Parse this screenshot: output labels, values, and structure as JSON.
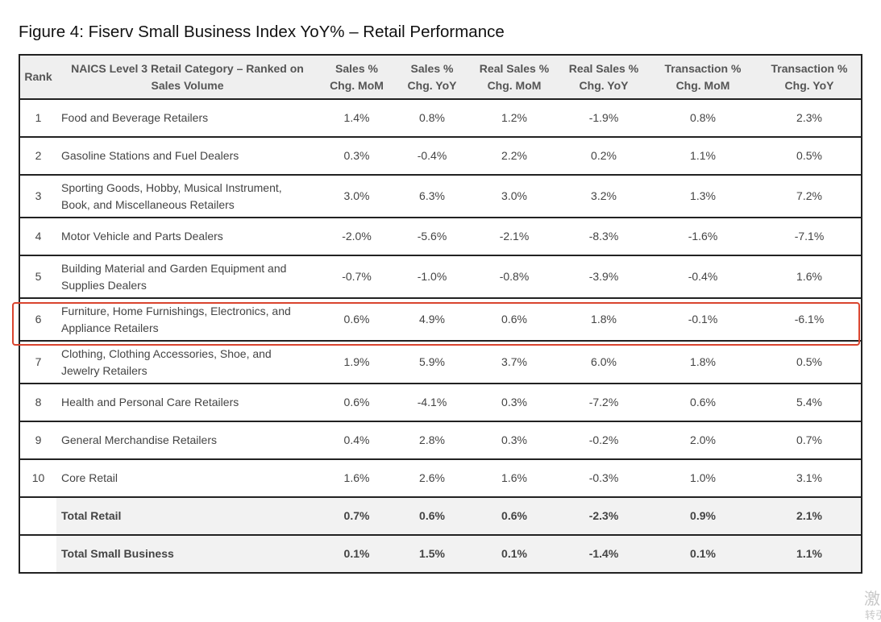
{
  "title": "Figure 4: Fiserv Small Business Index YoY% – Retail Performance",
  "columns": [
    {
      "line1": "Rank",
      "line2": ""
    },
    {
      "line1": "NAICS Level 3 Retail Category – Ranked on",
      "line2": "Sales Volume"
    },
    {
      "line1": "Sales %",
      "line2": "Chg. MoM"
    },
    {
      "line1": "Sales %",
      "line2": "Chg. YoY"
    },
    {
      "line1": "Real Sales %",
      "line2": "Chg. MoM"
    },
    {
      "line1": "Real Sales %",
      "line2": "Chg. YoY"
    },
    {
      "line1": "Transaction %",
      "line2": "Chg. MoM"
    },
    {
      "line1": "Transaction %",
      "line2": "Chg. YoY"
    }
  ],
  "rows": [
    {
      "rank": "1",
      "l1": "Food and Beverage Retailers",
      "l2": "",
      "v": [
        "1.4%",
        "0.8%",
        "1.2%",
        "-1.9%",
        "0.8%",
        "2.3%"
      ]
    },
    {
      "rank": "2",
      "l1": "Gasoline Stations and Fuel Dealers",
      "l2": "",
      "v": [
        "0.3%",
        "-0.4%",
        "2.2%",
        "0.2%",
        "1.1%",
        "0.5%"
      ]
    },
    {
      "rank": "3",
      "l1": "Sporting Goods, Hobby, Musical Instrument,",
      "l2": "Book, and Miscellaneous Retailers",
      "v": [
        "3.0%",
        "6.3%",
        "3.0%",
        "3.2%",
        "1.3%",
        "7.2%"
      ]
    },
    {
      "rank": "4",
      "l1": "Motor Vehicle and Parts Dealers",
      "l2": "",
      "v": [
        "-2.0%",
        "-5.6%",
        "-2.1%",
        "-8.3%",
        "-1.6%",
        "-7.1%"
      ]
    },
    {
      "rank": "5",
      "l1": "Building Material and Garden Equipment and",
      "l2": "Supplies Dealers",
      "v": [
        "-0.7%",
        "-1.0%",
        "-0.8%",
        "-3.9%",
        "-0.4%",
        "1.6%"
      ]
    },
    {
      "rank": "6",
      "l1": "Furniture, Home Furnishings, Electronics, and",
      "l2": "Appliance Retailers",
      "v": [
        "0.6%",
        "4.9%",
        "0.6%",
        "1.8%",
        "-0.1%",
        "-6.1%"
      ]
    },
    {
      "rank": "7",
      "l1": "Clothing, Clothing Accessories, Shoe, and",
      "l2": "Jewelry Retailers",
      "v": [
        "1.9%",
        "5.9%",
        "3.7%",
        "6.0%",
        "1.8%",
        "0.5%"
      ]
    },
    {
      "rank": "8",
      "l1": "Health and Personal Care Retailers",
      "l2": "",
      "v": [
        "0.6%",
        "-4.1%",
        "0.3%",
        "-7.2%",
        "0.6%",
        "5.4%"
      ]
    },
    {
      "rank": "9",
      "l1": "General Merchandise Retailers",
      "l2": "",
      "v": [
        "0.4%",
        "2.8%",
        "0.3%",
        "-0.2%",
        "2.0%",
        "0.7%"
      ]
    },
    {
      "rank": "10",
      "l1": "Core Retail",
      "l2": "",
      "v": [
        "1.6%",
        "2.6%",
        "1.6%",
        "-0.3%",
        "1.0%",
        "3.1%"
      ]
    },
    {
      "rank": "",
      "l1": "Total Retail",
      "l2": "",
      "v": [
        "0.7%",
        "0.6%",
        "0.6%",
        "-2.3%",
        "0.9%",
        "2.1%"
      ]
    },
    {
      "rank": "",
      "l1": "Total Small Business",
      "l2": "",
      "v": [
        "0.1%",
        "1.5%",
        "0.1%",
        "-1.4%",
        "0.1%",
        "1.1%"
      ]
    }
  ],
  "watermark": {
    "line1": "激",
    "line2": "转引"
  },
  "colors": {
    "highlight": "#d9442e",
    "border": "#222222",
    "header_bg": "#efefef",
    "total_bg": "#f2f2f2"
  }
}
